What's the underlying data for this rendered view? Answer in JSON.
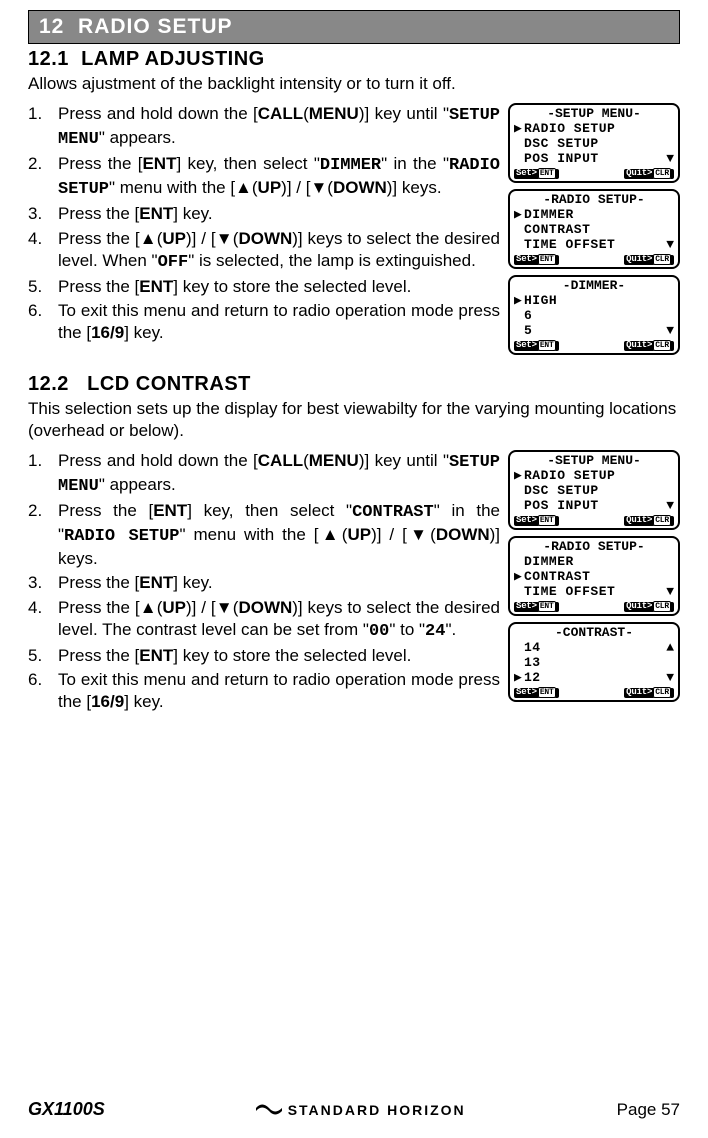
{
  "chapter": {
    "number": "12",
    "title": "RADIO SETUP"
  },
  "section1": {
    "number": "12.1",
    "title": "LAMP ADJUSTING",
    "intro": "Allows ajustment of the backlight intensity or to turn it off.",
    "steps": [
      "Press and hold down the [<b>CALL</b>(<b>MENU</b>)] key until \"<span class='mono'>SETUP MENU</span>\" appears.",
      "Press the [<b>ENT</b>] key, then select \"<span class='mono'>DIMMER</span>\" in the \"<span class='mono'>RADIO SETUP</span>\" menu with the [▲(<b>UP</b>)] / [▼(<b>DOWN</b>)] keys.",
      "Press the [<b>ENT</b>] key.",
      "Press the [▲(<b>UP</b>)] / [▼(<b>DOWN</b>)] keys to select the desired level. When \"<span class='mono'>OFF</span>\" is selected, the lamp is extinguished.",
      "Press the [<b>ENT</b>] key to store the selected level.",
      "To exit this menu and return to radio operation mode press the [<b>16/9</b>] key."
    ]
  },
  "section2": {
    "number": "12.2",
    "title": "LCD CONTRAST",
    "intro": "This selection sets up the display for best viewabilty for the varying mounting locations (overhead or below).",
    "steps": [
      "Press and hold down the [<b>CALL</b>(<b>MENU</b>)] key until \"<span class='mono'>SETUP MENU</span>\" appears.",
      "Press the [<b>ENT</b>] key, then select \"<span class='mono'>CONTRAST</span>\" in the \"<span class='mono'>RADIO SETUP</span>\" menu with the [▲(<b>UP</b>)] / [▼(<b>DOWN</b>)] keys.",
      "Press the [<b>ENT</b>] key.",
      "Press the [▲(<b>UP</b>)] / [▼(<b>DOWN</b>)] keys to select the desired level. The contrast level can be set from \"<span class='mono'>00</span>\" to \"<span class='mono'>24</span>\".",
      "Press the [<b>ENT</b>] key to store the selected level.",
      "To exit this menu and return to radio operation mode press the [<b>16/9</b>] key."
    ]
  },
  "screens1": [
    {
      "title": "-SETUP MENU-",
      "lines": [
        {
          "cursor": "▶",
          "text": "RADIO SETUP",
          "right": ""
        },
        {
          "cursor": "",
          "text": "DSC SETUP",
          "right": ""
        },
        {
          "cursor": "",
          "text": "POS INPUT",
          "right": "▼"
        }
      ],
      "footer_left": "Set>",
      "footer_left_key": "ENT",
      "footer_right": "Quit>",
      "footer_right_key": "CLR"
    },
    {
      "title": "-RADIO SETUP-",
      "lines": [
        {
          "cursor": "▶",
          "text": "DIMMER",
          "right": ""
        },
        {
          "cursor": "",
          "text": "CONTRAST",
          "right": ""
        },
        {
          "cursor": "",
          "text": "TIME OFFSET",
          "right": "▼"
        }
      ],
      "footer_left": "Set>",
      "footer_left_key": "ENT",
      "footer_right": "Quit>",
      "footer_right_key": "CLR"
    },
    {
      "title": "-DIMMER-",
      "lines": [
        {
          "cursor": "▶",
          "text": "HIGH",
          "right": ""
        },
        {
          "cursor": "",
          "text": "6",
          "right": ""
        },
        {
          "cursor": "",
          "text": "5",
          "right": "▼"
        }
      ],
      "footer_left": "Set>",
      "footer_left_key": "ENT",
      "footer_right": "Quit>",
      "footer_right_key": "CLR"
    }
  ],
  "screens2": [
    {
      "title": "-SETUP MENU-",
      "lines": [
        {
          "cursor": "▶",
          "text": "RADIO SETUP",
          "right": ""
        },
        {
          "cursor": "",
          "text": "DSC SETUP",
          "right": ""
        },
        {
          "cursor": "",
          "text": "POS INPUT",
          "right": "▼"
        }
      ],
      "footer_left": "Set>",
      "footer_left_key": "ENT",
      "footer_right": "Quit>",
      "footer_right_key": "CLR"
    },
    {
      "title": "-RADIO SETUP-",
      "lines": [
        {
          "cursor": "",
          "text": "DIMMER",
          "right": ""
        },
        {
          "cursor": "▶",
          "text": "CONTRAST",
          "right": ""
        },
        {
          "cursor": "",
          "text": "TIME OFFSET",
          "right": "▼"
        }
      ],
      "footer_left": "Set>",
      "footer_left_key": "ENT",
      "footer_right": "Quit>",
      "footer_right_key": "CLR"
    },
    {
      "title": "-CONTRAST-",
      "lines": [
        {
          "cursor": "",
          "text": "14",
          "right": "▲"
        },
        {
          "cursor": "",
          "text": "13",
          "right": ""
        },
        {
          "cursor": "▶",
          "text": "12",
          "right": "▼"
        }
      ],
      "footer_left": "Set>",
      "footer_left_key": "ENT",
      "footer_right": "Quit>",
      "footer_right_key": "CLR"
    }
  ],
  "footer": {
    "model": "GX1100S",
    "brand": "STANDARD HORIZON",
    "page": "Page 57"
  }
}
